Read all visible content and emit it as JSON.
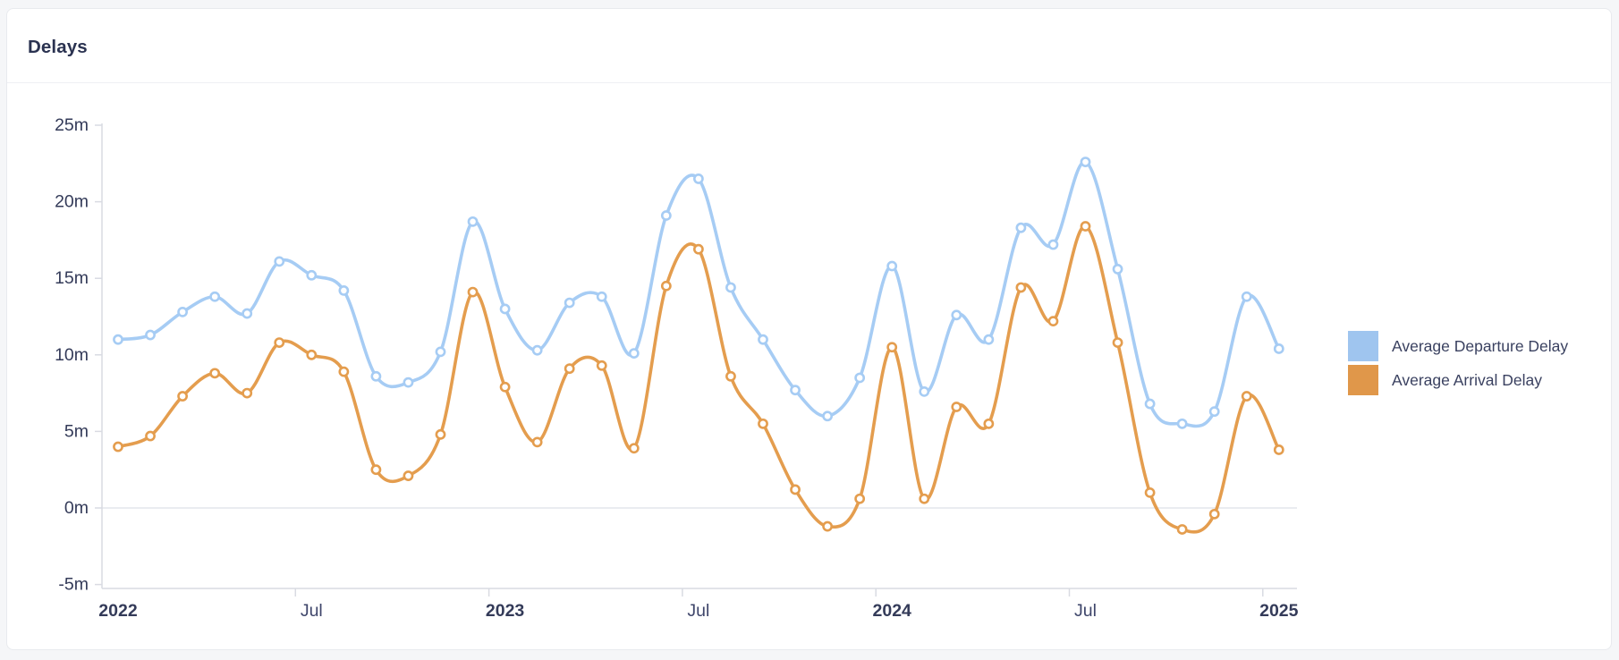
{
  "card": {
    "title": "Delays"
  },
  "legend": {
    "items": [
      {
        "label": "Average Departure Delay",
        "color": "#9fc5ef"
      },
      {
        "label": "Average Arrival Delay",
        "color": "#e0974a"
      }
    ]
  },
  "chart_data": {
    "type": "line",
    "title": "Delays",
    "x_unit": "month",
    "x": [
      "2022-01",
      "2022-02",
      "2022-03",
      "2022-04",
      "2022-05",
      "2022-06",
      "2022-07",
      "2022-08",
      "2022-09",
      "2022-10",
      "2022-11",
      "2022-12",
      "2023-01",
      "2023-02",
      "2023-03",
      "2023-04",
      "2023-05",
      "2023-06",
      "2023-07",
      "2023-08",
      "2023-09",
      "2023-10",
      "2023-11",
      "2023-12",
      "2024-01",
      "2024-02",
      "2024-03",
      "2024-04",
      "2024-05",
      "2024-06",
      "2024-07",
      "2024-08",
      "2024-09",
      "2024-10",
      "2024-11",
      "2024-12",
      "2025-01"
    ],
    "series": [
      {
        "name": "Average Departure Delay",
        "color": "#a6ccf4",
        "swatch_color": "#9fc5ef",
        "values": [
          11.0,
          11.3,
          12.8,
          13.8,
          12.7,
          16.1,
          15.2,
          14.2,
          8.6,
          8.2,
          10.2,
          18.7,
          13.0,
          10.3,
          13.4,
          13.8,
          10.1,
          19.1,
          21.5,
          14.4,
          11.0,
          7.7,
          6.0,
          8.5,
          15.8,
          7.6,
          12.6,
          11.0,
          18.3,
          17.2,
          22.6,
          15.6,
          6.8,
          5.5,
          6.3,
          13.8,
          10.4
        ]
      },
      {
        "name": "Average Arrival Delay",
        "color": "#e49d4e",
        "swatch_color": "#e0974a",
        "values": [
          4.0,
          4.7,
          7.3,
          8.8,
          7.5,
          10.8,
          10.0,
          8.9,
          2.5,
          2.1,
          4.8,
          14.1,
          7.9,
          4.3,
          9.1,
          9.3,
          3.9,
          14.5,
          16.9,
          8.6,
          5.5,
          1.2,
          -1.2,
          0.6,
          10.5,
          0.6,
          6.6,
          5.5,
          14.4,
          12.2,
          18.4,
          10.8,
          1.0,
          -1.4,
          -0.4,
          7.3,
          3.8
        ]
      }
    ],
    "xlabel": "",
    "ylabel": "minutes",
    "ylim": [
      -5,
      25
    ],
    "y_ticks": [
      {
        "value": 25,
        "label": "25m"
      },
      {
        "value": 20,
        "label": "20m"
      },
      {
        "value": 15,
        "label": "15m"
      },
      {
        "value": 10,
        "label": "10m"
      },
      {
        "value": 5,
        "label": "5m"
      },
      {
        "value": 0,
        "label": "0m"
      },
      {
        "value": -5,
        "label": "-5m"
      }
    ],
    "x_ticks": [
      {
        "label": "2022",
        "month_index": 0,
        "emphasis": true
      },
      {
        "label": "Jul",
        "month_index": 6,
        "emphasis": false
      },
      {
        "label": "2023",
        "month_index": 12,
        "emphasis": true
      },
      {
        "label": "Jul",
        "month_index": 18,
        "emphasis": false
      },
      {
        "label": "2024",
        "month_index": 24,
        "emphasis": true
      },
      {
        "label": "Jul",
        "month_index": 30,
        "emphasis": false
      },
      {
        "label": "2025",
        "month_index": 36,
        "emphasis": true
      }
    ],
    "grid": "zero-line-only",
    "legend_position": "right",
    "marker": "open-circle",
    "smooth": true
  }
}
